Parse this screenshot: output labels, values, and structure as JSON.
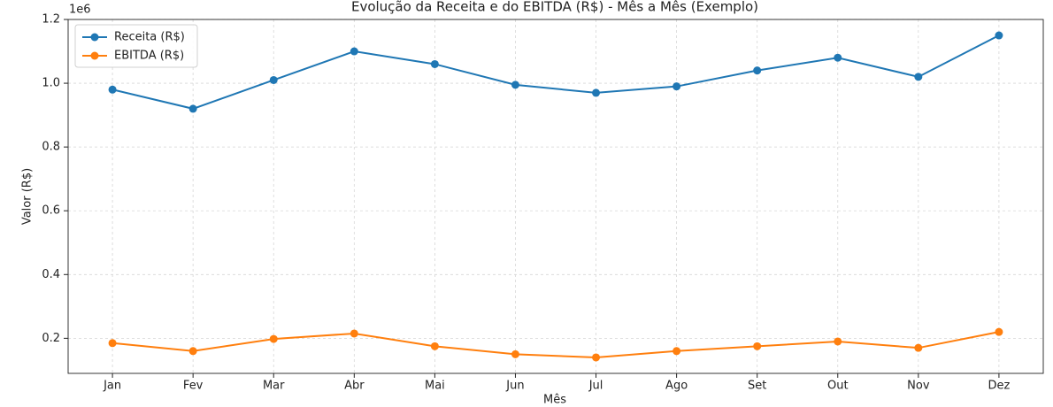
{
  "chart_data": {
    "type": "line",
    "title": "Evolução da Receita e do EBITDA (R$) - Mês a Mês (Exemplo)",
    "x_label": "Mês",
    "y_label": "Valor (R$)",
    "y_offset_label": "1e6",
    "categories": [
      "Jan",
      "Fev",
      "Mar",
      "Abr",
      "Mai",
      "Jun",
      "Jul",
      "Ago",
      "Set",
      "Out",
      "Nov",
      "Dez"
    ],
    "series": [
      {
        "name": "Receita (R$)",
        "color": "#1f77b4",
        "values": [
          980000,
          920000,
          1010000,
          1100000,
          1060000,
          995000,
          970000,
          990000,
          1040000,
          1080000,
          1020000,
          1150000
        ]
      },
      {
        "name": "EBITDA (R$)",
        "color": "#ff7f0e",
        "values": [
          185000,
          160000,
          198000,
          215000,
          175000,
          150000,
          140000,
          160000,
          175000,
          190000,
          170000,
          220000
        ]
      }
    ],
    "ylim": [
      90000,
      1200000
    ],
    "yticks": [
      {
        "value": 200000,
        "label": "0.2"
      },
      {
        "value": 400000,
        "label": "0.4"
      },
      {
        "value": 600000,
        "label": "0.6"
      },
      {
        "value": 800000,
        "label": "0.8"
      },
      {
        "value": 1000000,
        "label": "1.0"
      },
      {
        "value": 1200000,
        "label": "1.2"
      }
    ],
    "grid": true,
    "legend": "upper left"
  }
}
